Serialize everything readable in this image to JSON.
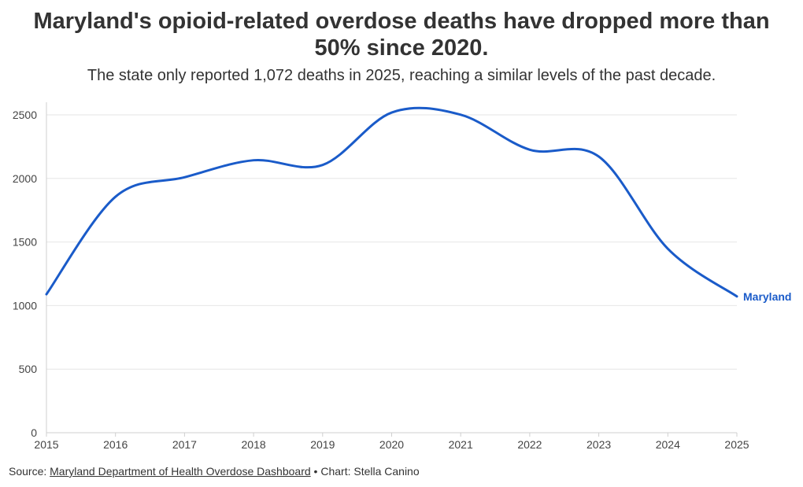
{
  "title": "Maryland's opioid-related overdose deaths have dropped more than 50% since 2020.",
  "subtitle": "The state only reported 1,072 deaths in 2025, reaching a similar levels of the past decade.",
  "footer": {
    "source_prefix": "Source:",
    "source_link": "Maryland Department of Health Overdose Dashboard",
    "separator": "•",
    "credit": "Chart: Stella Canino"
  },
  "chart_data": {
    "type": "line",
    "title": "Maryland's opioid-related overdose deaths have dropped more than 50% since 2020.",
    "subtitle": "The state only reported 1,072 deaths in 2025, reaching a similar levels of the past decade.",
    "xlabel": "",
    "ylabel": "",
    "x": [
      2015,
      2016,
      2017,
      2018,
      2019,
      2020,
      2021,
      2022,
      2023,
      2024,
      2025
    ],
    "series": [
      {
        "name": "Maryland",
        "color": "#1a5bc9",
        "values": [
          1089,
          1856,
          2009,
          2143,
          2106,
          2518,
          2501,
          2226,
          2172,
          1447,
          1072
        ]
      }
    ],
    "xlim": [
      2015,
      2025
    ],
    "ylim": [
      0,
      2500
    ],
    "yticks": [
      0,
      500,
      1000,
      1500,
      2000,
      2500
    ],
    "xticks": [
      2015,
      2016,
      2017,
      2018,
      2019,
      2020,
      2021,
      2022,
      2023,
      2024,
      2025
    ],
    "grid": true,
    "legend": "direct label at line end"
  }
}
